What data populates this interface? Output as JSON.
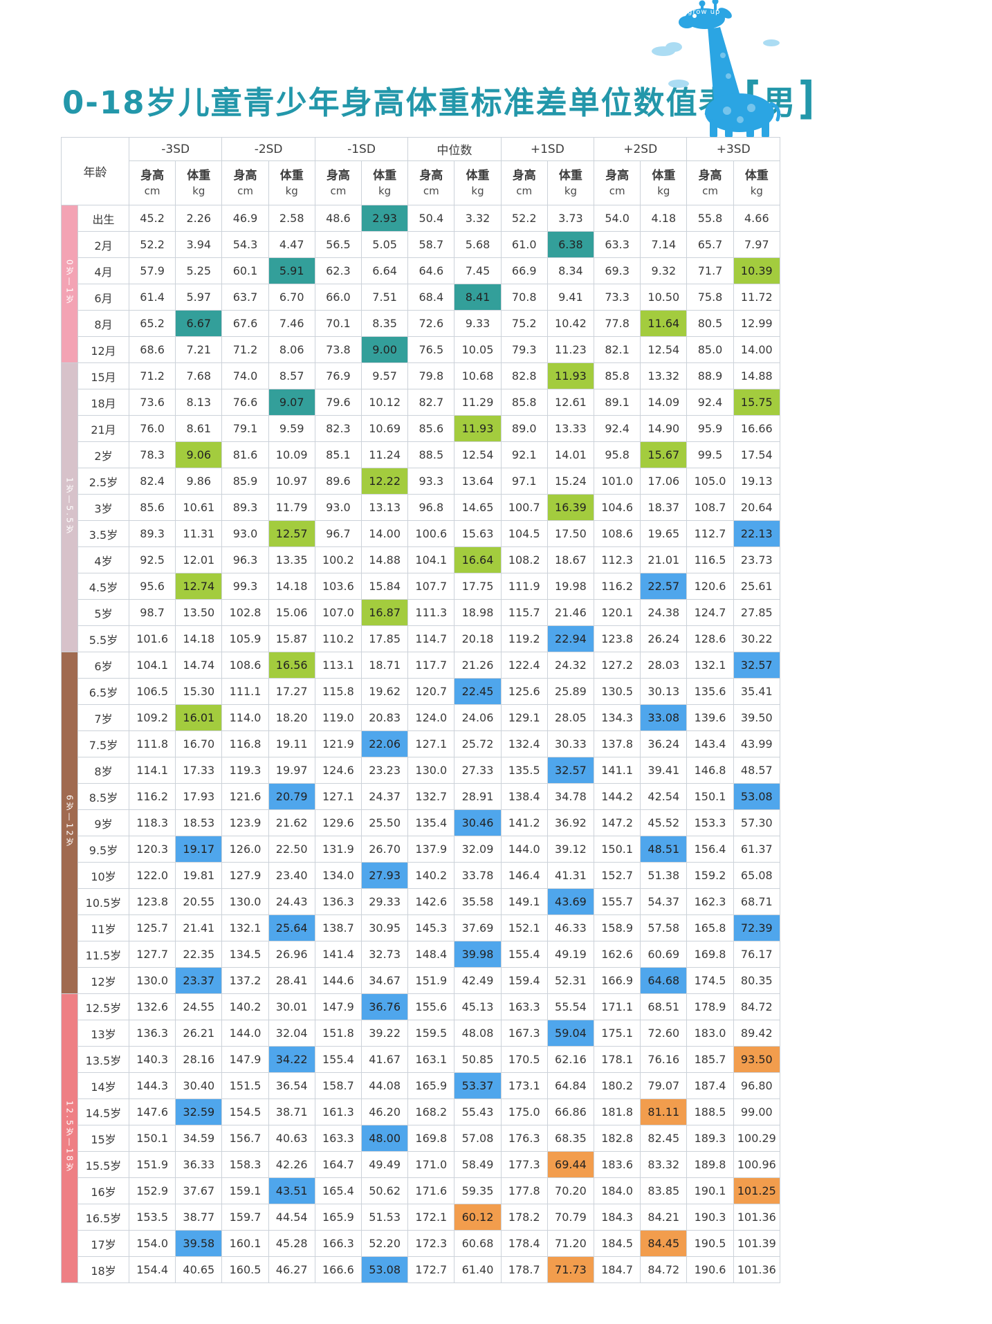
{
  "title": {
    "main": "0-18岁儿童青少年身高体重标准差单位数值表",
    "bracket_left": "[",
    "gender": "男",
    "bracket_right": "]"
  },
  "mascot": {
    "label": "grow up"
  },
  "table": {
    "age_header": "年龄",
    "groups": [
      "-3SD",
      "-2SD",
      "-1SD",
      "中位数",
      "+1SD",
      "+2SD",
      "+3SD"
    ],
    "sub_headers": {
      "height": "身高",
      "height_unit": "cm",
      "weight": "体重",
      "weight_unit": "kg"
    },
    "sidebar_sections": [
      {
        "label": "0岁—1岁",
        "rows": 6,
        "color": "#f3a3b4"
      },
      {
        "label": "1岁—5.5岁",
        "rows": 11,
        "color": "#d7c2ca"
      },
      {
        "label": "6岁—12岁",
        "rows": 13,
        "color": "#a06a50"
      },
      {
        "label": "12.5岁—18岁",
        "rows": 11,
        "color": "#ee7f84"
      }
    ],
    "highlight_colors": {
      "teal": "#339f9a",
      "green": "#a3cc3e",
      "blue": "#4fa6ec",
      "orange": "#f29d4d"
    },
    "rows": [
      {
        "age": "出生",
        "values": [
          "45.2",
          "2.26",
          "46.9",
          "2.58",
          "48.6",
          "2.93",
          "50.4",
          "3.32",
          "52.2",
          "3.73",
          "54.0",
          "4.18",
          "55.8",
          "4.66"
        ],
        "highlights": {
          "5": "teal"
        }
      },
      {
        "age": "2月",
        "values": [
          "52.2",
          "3.94",
          "54.3",
          "4.47",
          "56.5",
          "5.05",
          "58.7",
          "5.68",
          "61.0",
          "6.38",
          "63.3",
          "7.14",
          "65.7",
          "7.97"
        ],
        "highlights": {
          "9": "teal"
        }
      },
      {
        "age": "4月",
        "values": [
          "57.9",
          "5.25",
          "60.1",
          "5.91",
          "62.3",
          "6.64",
          "64.6",
          "7.45",
          "66.9",
          "8.34",
          "69.3",
          "9.32",
          "71.7",
          "10.39"
        ],
        "highlights": {
          "3": "teal",
          "13": "green"
        }
      },
      {
        "age": "6月",
        "values": [
          "61.4",
          "5.97",
          "63.7",
          "6.70",
          "66.0",
          "7.51",
          "68.4",
          "8.41",
          "70.8",
          "9.41",
          "73.3",
          "10.50",
          "75.8",
          "11.72"
        ],
        "highlights": {
          "7": "teal"
        }
      },
      {
        "age": "8月",
        "values": [
          "65.2",
          "6.67",
          "67.6",
          "7.46",
          "70.1",
          "8.35",
          "72.6",
          "9.33",
          "75.2",
          "10.42",
          "77.8",
          "11.64",
          "80.5",
          "12.99"
        ],
        "highlights": {
          "1": "teal",
          "11": "green"
        }
      },
      {
        "age": "12月",
        "values": [
          "68.6",
          "7.21",
          "71.2",
          "8.06",
          "73.8",
          "9.00",
          "76.5",
          "10.05",
          "79.3",
          "11.23",
          "82.1",
          "12.54",
          "85.0",
          "14.00"
        ],
        "highlights": {
          "5": "teal"
        }
      },
      {
        "age": "15月",
        "values": [
          "71.2",
          "7.68",
          "74.0",
          "8.57",
          "76.9",
          "9.57",
          "79.8",
          "10.68",
          "82.8",
          "11.93",
          "85.8",
          "13.32",
          "88.9",
          "14.88"
        ],
        "highlights": {
          "9": "green"
        }
      },
      {
        "age": "18月",
        "values": [
          "73.6",
          "8.13",
          "76.6",
          "9.07",
          "79.6",
          "10.12",
          "82.7",
          "11.29",
          "85.8",
          "12.61",
          "89.1",
          "14.09",
          "92.4",
          "15.75"
        ],
        "highlights": {
          "3": "teal",
          "13": "green"
        }
      },
      {
        "age": "21月",
        "values": [
          "76.0",
          "8.61",
          "79.1",
          "9.59",
          "82.3",
          "10.69",
          "85.6",
          "11.93",
          "89.0",
          "13.33",
          "92.4",
          "14.90",
          "95.9",
          "16.66"
        ],
        "highlights": {
          "7": "green"
        }
      },
      {
        "age": "2岁",
        "values": [
          "78.3",
          "9.06",
          "81.6",
          "10.09",
          "85.1",
          "11.24",
          "88.5",
          "12.54",
          "92.1",
          "14.01",
          "95.8",
          "15.67",
          "99.5",
          "17.54"
        ],
        "highlights": {
          "1": "green",
          "11": "green"
        }
      },
      {
        "age": "2.5岁",
        "values": [
          "82.4",
          "9.86",
          "85.9",
          "10.97",
          "89.6",
          "12.22",
          "93.3",
          "13.64",
          "97.1",
          "15.24",
          "101.0",
          "17.06",
          "105.0",
          "19.13"
        ],
        "highlights": {
          "5": "green"
        }
      },
      {
        "age": "3岁",
        "values": [
          "85.6",
          "10.61",
          "89.3",
          "11.79",
          "93.0",
          "13.13",
          "96.8",
          "14.65",
          "100.7",
          "16.39",
          "104.6",
          "18.37",
          "108.7",
          "20.64"
        ],
        "highlights": {
          "9": "green"
        }
      },
      {
        "age": "3.5岁",
        "values": [
          "89.3",
          "11.31",
          "93.0",
          "12.57",
          "96.7",
          "14.00",
          "100.6",
          "15.63",
          "104.5",
          "17.50",
          "108.6",
          "19.65",
          "112.7",
          "22.13"
        ],
        "highlights": {
          "3": "green",
          "13": "blue"
        }
      },
      {
        "age": "4岁",
        "values": [
          "92.5",
          "12.01",
          "96.3",
          "13.35",
          "100.2",
          "14.88",
          "104.1",
          "16.64",
          "108.2",
          "18.67",
          "112.3",
          "21.01",
          "116.5",
          "23.73"
        ],
        "highlights": {
          "7": "green"
        }
      },
      {
        "age": "4.5岁",
        "values": [
          "95.6",
          "12.74",
          "99.3",
          "14.18",
          "103.6",
          "15.84",
          "107.7",
          "17.75",
          "111.9",
          "19.98",
          "116.2",
          "22.57",
          "120.6",
          "25.61"
        ],
        "highlights": {
          "1": "green",
          "11": "blue"
        }
      },
      {
        "age": "5岁",
        "values": [
          "98.7",
          "13.50",
          "102.8",
          "15.06",
          "107.0",
          "16.87",
          "111.3",
          "18.98",
          "115.7",
          "21.46",
          "120.1",
          "24.38",
          "124.7",
          "27.85"
        ],
        "highlights": {
          "5": "green"
        }
      },
      {
        "age": "5.5岁",
        "values": [
          "101.6",
          "14.18",
          "105.9",
          "15.87",
          "110.2",
          "17.85",
          "114.7",
          "20.18",
          "119.2",
          "22.94",
          "123.8",
          "26.24",
          "128.6",
          "30.22"
        ],
        "highlights": {
          "9": "blue"
        }
      },
      {
        "age": "6岁",
        "values": [
          "104.1",
          "14.74",
          "108.6",
          "16.56",
          "113.1",
          "18.71",
          "117.7",
          "21.26",
          "122.4",
          "24.32",
          "127.2",
          "28.03",
          "132.1",
          "32.57"
        ],
        "highlights": {
          "3": "green",
          "13": "blue"
        }
      },
      {
        "age": "6.5岁",
        "values": [
          "106.5",
          "15.30",
          "111.1",
          "17.27",
          "115.8",
          "19.62",
          "120.7",
          "22.45",
          "125.6",
          "25.89",
          "130.5",
          "30.13",
          "135.6",
          "35.41"
        ],
        "highlights": {
          "7": "blue"
        }
      },
      {
        "age": "7岁",
        "values": [
          "109.2",
          "16.01",
          "114.0",
          "18.20",
          "119.0",
          "20.83",
          "124.0",
          "24.06",
          "129.1",
          "28.05",
          "134.3",
          "33.08",
          "139.6",
          "39.50"
        ],
        "highlights": {
          "1": "green",
          "11": "blue"
        }
      },
      {
        "age": "7.5岁",
        "values": [
          "111.8",
          "16.70",
          "116.8",
          "19.11",
          "121.9",
          "22.06",
          "127.1",
          "25.72",
          "132.4",
          "30.33",
          "137.8",
          "36.24",
          "143.4",
          "43.99"
        ],
        "highlights": {
          "5": "blue"
        }
      },
      {
        "age": "8岁",
        "values": [
          "114.1",
          "17.33",
          "119.3",
          "19.97",
          "124.6",
          "23.23",
          "130.0",
          "27.33",
          "135.5",
          "32.57",
          "141.1",
          "39.41",
          "146.8",
          "48.57"
        ],
        "highlights": {
          "9": "blue"
        }
      },
      {
        "age": "8.5岁",
        "values": [
          "116.2",
          "17.93",
          "121.6",
          "20.79",
          "127.1",
          "24.37",
          "132.7",
          "28.91",
          "138.4",
          "34.78",
          "144.2",
          "42.54",
          "150.1",
          "53.08"
        ],
        "highlights": {
          "3": "blue",
          "13": "blue"
        }
      },
      {
        "age": "9岁",
        "values": [
          "118.3",
          "18.53",
          "123.9",
          "21.62",
          "129.6",
          "25.50",
          "135.4",
          "30.46",
          "141.2",
          "36.92",
          "147.2",
          "45.52",
          "153.3",
          "57.30"
        ],
        "highlights": {
          "7": "blue"
        }
      },
      {
        "age": "9.5岁",
        "values": [
          "120.3",
          "19.17",
          "126.0",
          "22.50",
          "131.9",
          "26.70",
          "137.9",
          "32.09",
          "144.0",
          "39.12",
          "150.1",
          "48.51",
          "156.4",
          "61.37"
        ],
        "highlights": {
          "1": "blue",
          "11": "blue"
        }
      },
      {
        "age": "10岁",
        "values": [
          "122.0",
          "19.81",
          "127.9",
          "23.40",
          "134.0",
          "27.93",
          "140.2",
          "33.78",
          "146.4",
          "41.31",
          "152.7",
          "51.38",
          "159.2",
          "65.08"
        ],
        "highlights": {
          "5": "blue"
        }
      },
      {
        "age": "10.5岁",
        "values": [
          "123.8",
          "20.55",
          "130.0",
          "24.43",
          "136.3",
          "29.33",
          "142.6",
          "35.58",
          "149.1",
          "43.69",
          "155.7",
          "54.37",
          "162.3",
          "68.71"
        ],
        "highlights": {
          "9": "blue"
        }
      },
      {
        "age": "11岁",
        "values": [
          "125.7",
          "21.41",
          "132.1",
          "25.64",
          "138.7",
          "30.95",
          "145.3",
          "37.69",
          "152.1",
          "46.33",
          "158.9",
          "57.58",
          "165.8",
          "72.39"
        ],
        "highlights": {
          "3": "blue",
          "13": "blue"
        }
      },
      {
        "age": "11.5岁",
        "values": [
          "127.7",
          "22.35",
          "134.5",
          "26.96",
          "141.4",
          "32.73",
          "148.4",
          "39.98",
          "155.4",
          "49.19",
          "162.6",
          "60.69",
          "169.8",
          "76.17"
        ],
        "highlights": {
          "7": "blue"
        }
      },
      {
        "age": "12岁",
        "values": [
          "130.0",
          "23.37",
          "137.2",
          "28.41",
          "144.6",
          "34.67",
          "151.9",
          "42.49",
          "159.4",
          "52.31",
          "166.9",
          "64.68",
          "174.5",
          "80.35"
        ],
        "highlights": {
          "1": "blue",
          "11": "blue"
        }
      },
      {
        "age": "12.5岁",
        "values": [
          "132.6",
          "24.55",
          "140.2",
          "30.01",
          "147.9",
          "36.76",
          "155.6",
          "45.13",
          "163.3",
          "55.54",
          "171.1",
          "68.51",
          "178.9",
          "84.72"
        ],
        "highlights": {
          "5": "blue"
        }
      },
      {
        "age": "13岁",
        "values": [
          "136.3",
          "26.21",
          "144.0",
          "32.04",
          "151.8",
          "39.22",
          "159.5",
          "48.08",
          "167.3",
          "59.04",
          "175.1",
          "72.60",
          "183.0",
          "89.42"
        ],
        "highlights": {
          "9": "blue"
        }
      },
      {
        "age": "13.5岁",
        "values": [
          "140.3",
          "28.16",
          "147.9",
          "34.22",
          "155.4",
          "41.67",
          "163.1",
          "50.85",
          "170.5",
          "62.16",
          "178.1",
          "76.16",
          "185.7",
          "93.50"
        ],
        "highlights": {
          "3": "blue",
          "13": "orange"
        }
      },
      {
        "age": "14岁",
        "values": [
          "144.3",
          "30.40",
          "151.5",
          "36.54",
          "158.7",
          "44.08",
          "165.9",
          "53.37",
          "173.1",
          "64.84",
          "180.2",
          "79.07",
          "187.4",
          "96.80"
        ],
        "highlights": {
          "7": "blue"
        }
      },
      {
        "age": "14.5岁",
        "values": [
          "147.6",
          "32.59",
          "154.5",
          "38.71",
          "161.3",
          "46.20",
          "168.2",
          "55.43",
          "175.0",
          "66.86",
          "181.8",
          "81.11",
          "188.5",
          "99.00"
        ],
        "highlights": {
          "1": "blue",
          "11": "orange"
        }
      },
      {
        "age": "15岁",
        "values": [
          "150.1",
          "34.59",
          "156.7",
          "40.63",
          "163.3",
          "48.00",
          "169.8",
          "57.08",
          "176.3",
          "68.35",
          "182.8",
          "82.45",
          "189.3",
          "100.29"
        ],
        "highlights": {
          "5": "blue"
        }
      },
      {
        "age": "15.5岁",
        "values": [
          "151.9",
          "36.33",
          "158.3",
          "42.26",
          "164.7",
          "49.49",
          "171.0",
          "58.49",
          "177.3",
          "69.44",
          "183.6",
          "83.32",
          "189.8",
          "100.96"
        ],
        "highlights": {
          "9": "orange"
        }
      },
      {
        "age": "16岁",
        "values": [
          "152.9",
          "37.67",
          "159.1",
          "43.51",
          "165.4",
          "50.62",
          "171.6",
          "59.35",
          "177.8",
          "70.20",
          "184.0",
          "83.85",
          "190.1",
          "101.25"
        ],
        "highlights": {
          "3": "blue",
          "13": "orange"
        }
      },
      {
        "age": "16.5岁",
        "values": [
          "153.5",
          "38.77",
          "159.7",
          "44.54",
          "165.9",
          "51.53",
          "172.1",
          "60.12",
          "178.2",
          "70.79",
          "184.3",
          "84.21",
          "190.3",
          "101.36"
        ],
        "highlights": {
          "7": "orange"
        }
      },
      {
        "age": "17岁",
        "values": [
          "154.0",
          "39.58",
          "160.1",
          "45.28",
          "166.3",
          "52.20",
          "172.3",
          "60.68",
          "178.4",
          "71.20",
          "184.5",
          "84.45",
          "190.5",
          "101.39"
        ],
        "highlights": {
          "1": "blue",
          "11": "orange"
        }
      },
      {
        "age": "18岁",
        "values": [
          "154.4",
          "40.65",
          "160.5",
          "46.27",
          "166.6",
          "53.08",
          "172.7",
          "61.40",
          "178.7",
          "71.73",
          "184.7",
          "84.72",
          "190.6",
          "101.36"
        ],
        "highlights": {
          "5": "blue",
          "9": "orange"
        }
      }
    ]
  }
}
